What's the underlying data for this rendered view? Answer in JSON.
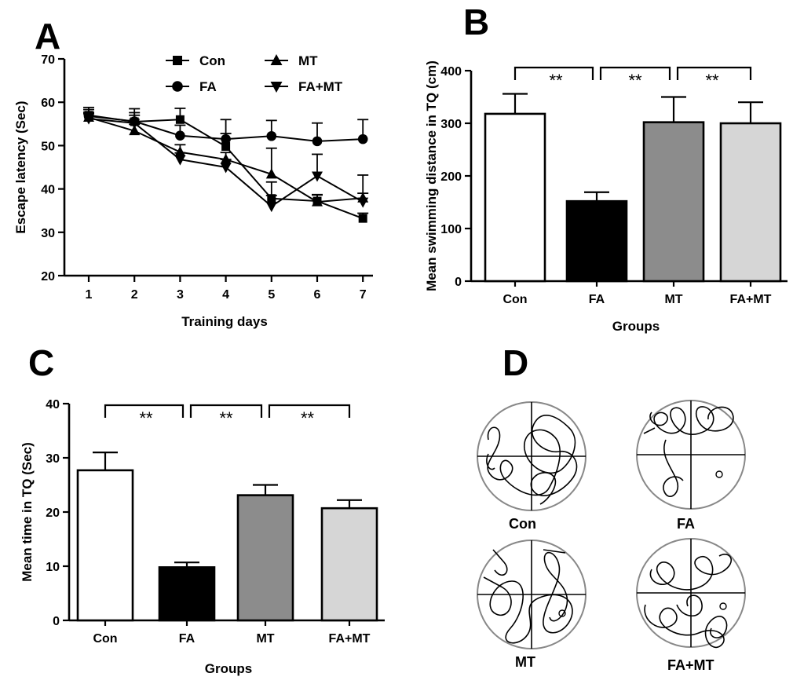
{
  "panels": {
    "a": {
      "letter": "A"
    },
    "b": {
      "letter": "B"
    },
    "c": {
      "letter": "C"
    },
    "d": {
      "letter": "D"
    }
  },
  "chart_data": [
    {
      "panel": "A",
      "type": "line",
      "xlabel": "Training days",
      "ylabel": "Escape latency (Sec)",
      "x": [
        1,
        2,
        3,
        4,
        5,
        6,
        7
      ],
      "xlim": [
        0.5,
        7.5
      ],
      "ylim": [
        20,
        70
      ],
      "yticks": [
        20,
        30,
        40,
        50,
        60,
        70
      ],
      "grid": false,
      "legend_position": "top-center",
      "series": [
        {
          "name": "Con",
          "marker": "square",
          "values": [
            57.0,
            55.5,
            56.0,
            49.8,
            37.8,
            37.2,
            33.2
          ],
          "errors": [
            1.8,
            3.0,
            2.6,
            3.0,
            3.8,
            1.5,
            1.2
          ]
        },
        {
          "name": "FA",
          "marker": "circle",
          "values": [
            56.8,
            55.6,
            52.3,
            51.5,
            52.2,
            51.0,
            51.5
          ],
          "errors": [
            1.5,
            2.0,
            2.4,
            4.5,
            3.6,
            4.2,
            4.5
          ]
        },
        {
          "name": "MT",
          "marker": "triangle-up",
          "values": [
            56.5,
            53.4,
            48.5,
            46.8,
            43.4,
            37.0,
            37.9
          ],
          "errors": [
            1.2,
            1.5,
            1.7,
            1.6,
            6.0,
            1.6,
            5.3
          ]
        },
        {
          "name": "FA+MT",
          "marker": "triangle-down",
          "values": [
            56.2,
            55.2,
            46.8,
            45.0,
            36.0,
            43.0,
            37.0
          ],
          "errors": [
            1.2,
            1.8,
            1.5,
            1.8,
            2.5,
            5.0,
            2.0
          ]
        }
      ]
    },
    {
      "panel": "B",
      "type": "bar",
      "xlabel": "Groups",
      "ylabel": "Mean swimming distance in TQ (cm)",
      "categories": [
        "Con",
        "FA",
        "MT",
        "FA+MT"
      ],
      "values": [
        318,
        152,
        302,
        300
      ],
      "errors": [
        38,
        17,
        48,
        40
      ],
      "colors": [
        "#ffffff",
        "#000000",
        "#8c8c8c",
        "#d6d6d6"
      ],
      "ylim": [
        0,
        400
      ],
      "yticks": [
        0,
        100,
        200,
        300,
        400
      ],
      "significance": [
        {
          "from": 0,
          "to": 1,
          "label": "**"
        },
        {
          "from": 1,
          "to": 2,
          "label": "**"
        },
        {
          "from": 2,
          "to": 3,
          "label": "**"
        }
      ]
    },
    {
      "panel": "C",
      "type": "bar",
      "xlabel": "Groups",
      "ylabel": "Mean time in TQ (Sec)",
      "categories": [
        "Con",
        "FA",
        "MT",
        "FA+MT"
      ],
      "values": [
        27.7,
        9.8,
        23.1,
        20.7
      ],
      "errors": [
        3.3,
        0.9,
        1.9,
        1.5
      ],
      "colors": [
        "#ffffff",
        "#000000",
        "#8c8c8c",
        "#d6d6d6"
      ],
      "ylim": [
        0,
        40
      ],
      "yticks": [
        0,
        10,
        20,
        30,
        40
      ],
      "significance": [
        {
          "from": 0,
          "to": 1,
          "label": "**"
        },
        {
          "from": 1,
          "to": 2,
          "label": "**"
        },
        {
          "from": 2,
          "to": 3,
          "label": "**"
        }
      ]
    }
  ],
  "maze_tracks": [
    {
      "label": "Con",
      "platform_quadrant": "none"
    },
    {
      "label": "FA",
      "platform_quadrant": "bottom-right"
    },
    {
      "label": "MT",
      "platform_quadrant": "bottom-right"
    },
    {
      "label": "FA+MT",
      "platform_quadrant": "bottom-right"
    }
  ]
}
